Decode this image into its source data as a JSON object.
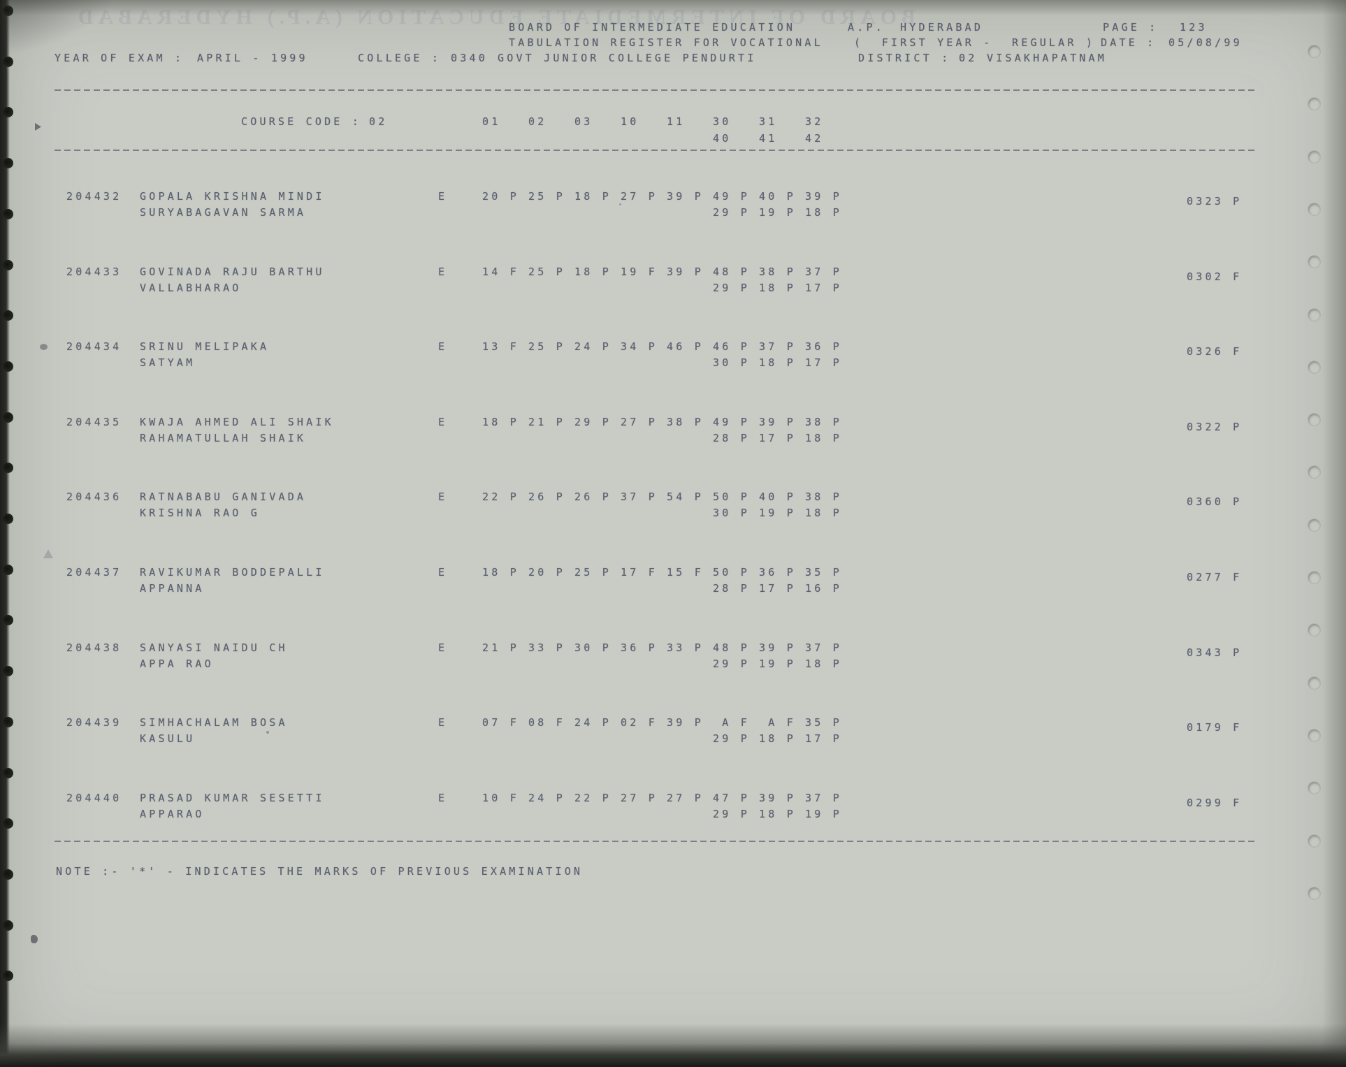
{
  "document": {
    "board_title": "BOARD OF INTERMEDIATE EDUCATION",
    "board_region": "A.P.",
    "board_city": "HYDERABAD",
    "page_label": "PAGE :",
    "page_number": "123",
    "register_title": "TABULATION REGISTER FOR VOCATIONAL",
    "exam_group_left": "(  FIRST YEAR -",
    "exam_group_right": "REGULAR )",
    "date_label": "DATE :",
    "date_value": "05/08/99",
    "year_of_exam_label": "YEAR OF EXAM :",
    "year_of_exam_value": "APRIL - 1999",
    "college_label": "COLLEGE :",
    "college_code": "0340",
    "college_name": "GOVT JUNIOR COLLEGE PENDURTI",
    "district_label": "DISTRICT :",
    "district_code": "02",
    "district_name": "VISAKHAPATNAM",
    "note": "NOTE :- '*' - INDICATES THE MARKS OF PREVIOUS EXAMINATION",
    "bleed_text": "BOARD OF INTERMEDIATE EDUCATION (A.P.) HYDERABAD"
  },
  "course": {
    "label": "COURSE CODE :",
    "code": "02",
    "subject_columns_row1": [
      "01",
      "02",
      "03",
      "10",
      "11",
      "30",
      "31",
      "32"
    ],
    "subject_columns_row2": [
      "40",
      "41",
      "42"
    ]
  },
  "students": [
    {
      "roll": "204432",
      "name_line1": "GOPALA KRISHNA MINDI",
      "name_line2": "SURYABAGAVAN SARMA",
      "medium": "E",
      "marks_line1": [
        "20 P",
        "25 P",
        "18 P",
        "27 P",
        "39 P",
        "49 P",
        "40 P",
        "39 P"
      ],
      "marks_line2": [
        "29 P",
        "19 P",
        "18 P"
      ],
      "total": "0323 P"
    },
    {
      "roll": "204433",
      "name_line1": "GOVINADA RAJU BARTHU",
      "name_line2": "VALLABHARAO",
      "medium": "E",
      "marks_line1": [
        "14 F",
        "25 P",
        "18 P",
        "19 F",
        "39 P",
        "48 P",
        "38 P",
        "37 P"
      ],
      "marks_line2": [
        "29 P",
        "18 P",
        "17 P"
      ],
      "total": "0302 F"
    },
    {
      "roll": "204434",
      "name_line1": "SRINU MELIPAKA",
      "name_line2": "SATYAM",
      "medium": "E",
      "marks_line1": [
        "13 F",
        "25 P",
        "24 P",
        "34 P",
        "46 P",
        "46 P",
        "37 P",
        "36 P"
      ],
      "marks_line2": [
        "30 P",
        "18 P",
        "17 P"
      ],
      "total": "0326 F"
    },
    {
      "roll": "204435",
      "name_line1": "KWAJA AHMED ALI SHAIK",
      "name_line2": "RAHAMATULLAH SHAIK",
      "medium": "E",
      "marks_line1": [
        "18 P",
        "21 P",
        "29 P",
        "27 P",
        "38 P",
        "49 P",
        "39 P",
        "38 P"
      ],
      "marks_line2": [
        "28 P",
        "17 P",
        "18 P"
      ],
      "total": "0322 P"
    },
    {
      "roll": "204436",
      "name_line1": "RATNABABU GANIVADA",
      "name_line2": "KRISHNA RAO G",
      "medium": "E",
      "marks_line1": [
        "22 P",
        "26 P",
        "26 P",
        "37 P",
        "54 P",
        "50 P",
        "40 P",
        "38 P"
      ],
      "marks_line2": [
        "30 P",
        "19 P",
        "18 P"
      ],
      "total": "0360 P"
    },
    {
      "roll": "204437",
      "name_line1": "RAVIKUMAR BODDEPALLI",
      "name_line2": "APPANNA",
      "medium": "E",
      "marks_line1": [
        "18 P",
        "20 P",
        "25 P",
        "17 F",
        "15 F",
        "50 P",
        "36 P",
        "35 P"
      ],
      "marks_line2": [
        "28 P",
        "17 P",
        "16 P"
      ],
      "total": "0277 F"
    },
    {
      "roll": "204438",
      "name_line1": "SANYASI NAIDU CH",
      "name_line2": "APPA RAO",
      "medium": "E",
      "marks_line1": [
        "21 P",
        "33 P",
        "30 P",
        "36 P",
        "33 P",
        "48 P",
        "39 P",
        "37 P"
      ],
      "marks_line2": [
        "29 P",
        "19 P",
        "18 P"
      ],
      "total": "0343 P"
    },
    {
      "roll": "204439",
      "name_line1": "SIMHACHALAM BOSA",
      "name_line2": "KASULU",
      "medium": "E",
      "marks_line1": [
        "07 F",
        "08 F",
        "24 P",
        "02 F",
        "39 P",
        " A F",
        " A F",
        "35 P"
      ],
      "marks_line2": [
        "29 P",
        "18 P",
        "17 P"
      ],
      "total": "0179 F"
    },
    {
      "roll": "204440",
      "name_line1": "PRASAD KUMAR SESETTI",
      "name_line2": "APPARAO",
      "medium": "E",
      "marks_line1": [
        "10 F",
        "24 P",
        "22 P",
        "27 P",
        "27 P",
        "47 P",
        "39 P",
        "37 P"
      ],
      "marks_line2": [
        "29 P",
        "18 P",
        "19 P"
      ],
      "total": "0299 F"
    }
  ]
}
